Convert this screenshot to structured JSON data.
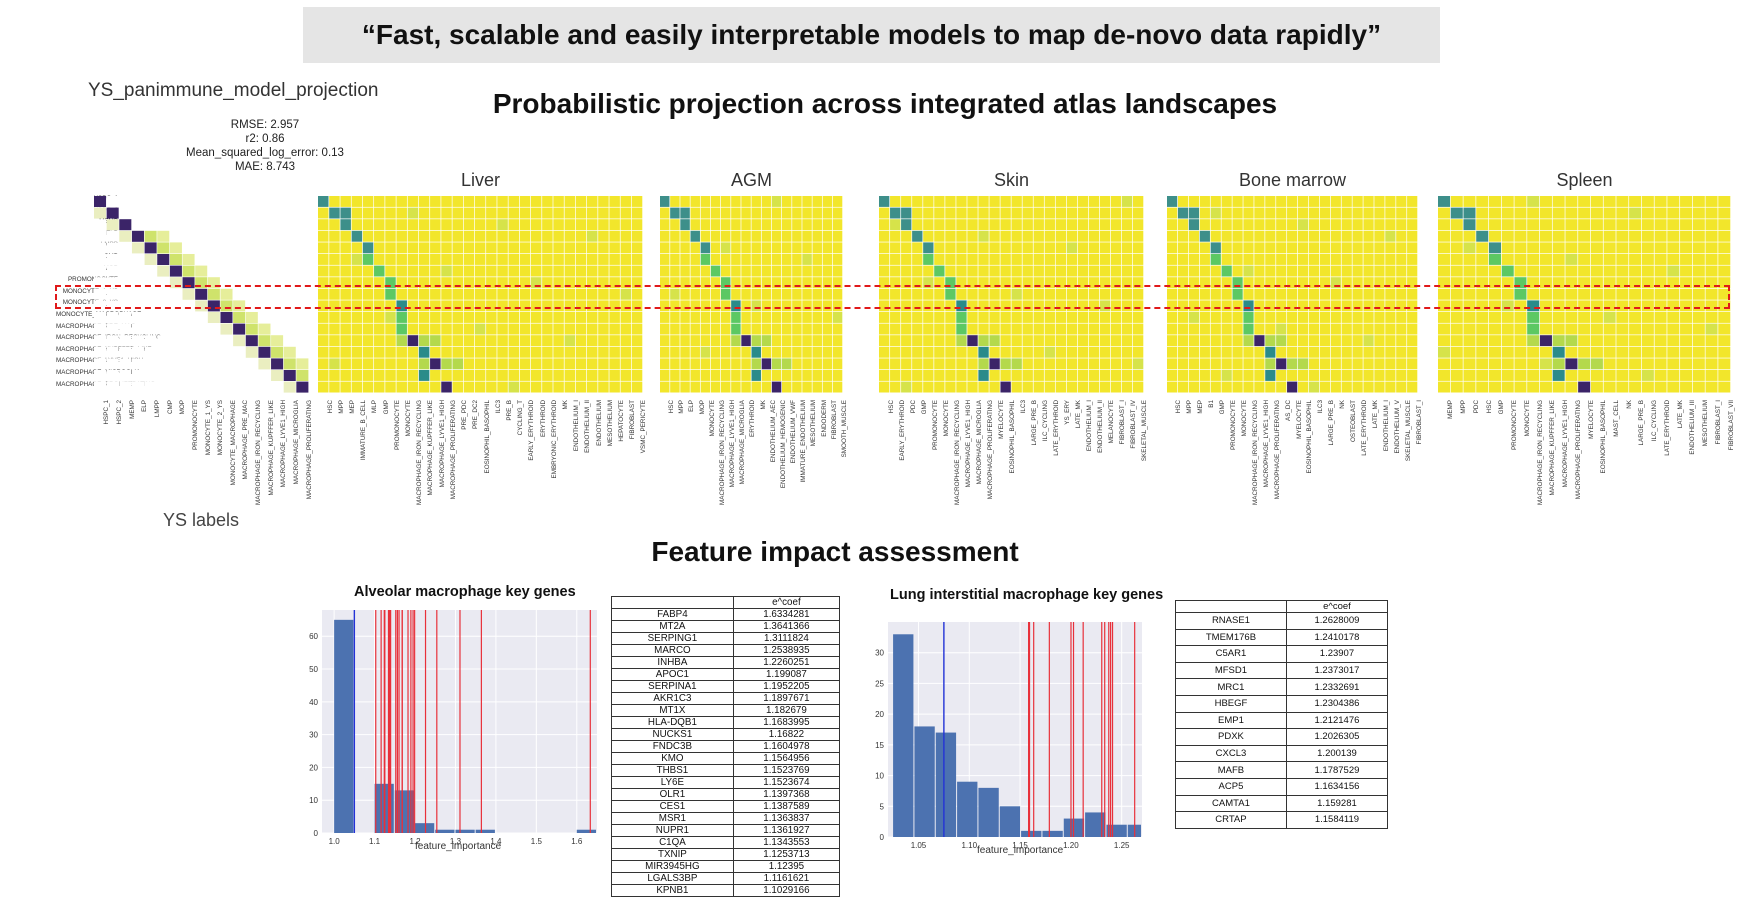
{
  "banner": "“Fast, scalable and easily interpretable models to map de-novo data rapidly”",
  "projection_title": "Probabilistic projection across integrated atlas landscapes",
  "model": {
    "name": "YS_panimmune_model_projection",
    "metrics": [
      "RMSE: 2.957",
      "r2: 0.86",
      "Mean_squared_log_error: 0.13",
      "MAE: 8.743"
    ]
  },
  "ys_axis_label": "YS labels",
  "ys_rows": [
    "HSPC_1",
    "HSPC_2",
    "MEMP",
    "ELP",
    "LMPP",
    "CMP",
    "MOP",
    "PROMONOCYTE",
    "MONOCYTE_1_YS",
    "MONOCYTE_2_YS",
    "MONOCYTE_MACROPHAGE",
    "MACROPHAGE_PRE_MAC",
    "MACROPHAGE_IRON_RECYCLING",
    "MACROPHAGE_KUPFFER_LIKE",
    "MACROPHAGE_LYVE1_HIGH",
    "MACROPHAGE_MICROGLIA",
    "MACROPHAGE_PROLIFERATING"
  ],
  "panels": [
    {
      "name": "Liver",
      "columns": [
        "HSC",
        "MPP",
        "MEP",
        "IMMATURE_B_CELL",
        "MLP",
        "GMP",
        "PROMONOCYTE",
        "MONOCYTE",
        "MACROPHAGE_IRON_RECYCLING",
        "MACROPHAGE_KUPFFER_LIKE",
        "MACROPHAGE_LYVE1_HIGH",
        "MACROPHAGE_PROLIFERATING",
        "PRE_PDC",
        "PRE_DC2",
        "EOSINOPHIL_BASOPHIL",
        "ILC3",
        "PRE_B",
        "CYCLING_T",
        "EARLY_ERYTHROID",
        "ERYTHROID",
        "EMBRYONIC_ERYTHROID",
        "MK",
        "ENDOTHELIUM_I",
        "ENDOTHELIUM_II",
        "ENDOTHELIUM",
        "MESOTHELIUM",
        "HEPATOCYTE",
        "FIBROBLAST",
        "VSMC_PERICYTE"
      ]
    },
    {
      "name": "AGM",
      "columns": [
        "HSC",
        "MPP",
        "ELP",
        "MOP",
        "MONOCYTE",
        "MACROPHAGE_IRON_RECYCLING",
        "MACROPHAGE_LYVE1_HIGH",
        "MACROPHAGE_MICROGLIA",
        "ERYTHROID",
        "MK",
        "ENDOTHELIUM_AEC",
        "ENDOTHELIUM_HEMOGENIC",
        "ENDOTHELIUM_VWF",
        "IMMATURE_ENDOTHELIUM",
        "MESOTHELIUM",
        "ENDODERM",
        "FIBROBLAST",
        "SMOOTH_MUSCLE"
      ]
    },
    {
      "name": "Skin",
      "columns": [
        "HSC",
        "EARLY_ERYTHROID",
        "PDC",
        "GMP",
        "PROMONOCYTE",
        "MONOCYTE",
        "MACROPHAGE_IRON_RECYCLING",
        "MACROPHAGE_LYVE1_HIGH",
        "MACROPHAGE_MICROGLIA",
        "MACROPHAGE_PROLIFERATING",
        "MYELOCYTE",
        "EOSINOPHIL_BASOPHIL",
        "ILC3",
        "LARGE_PRE_B",
        "ILC_CYCLING",
        "LATE_ERYTHROID",
        "YS_ERY",
        "LATE_MK",
        "ENDOTHELIUM_I",
        "ENDOTHELIUM_II",
        "MELANOCYTE",
        "FIBROBLAST_I",
        "FIBROBLAST_IV",
        "SKELETAL_MUSCLE"
      ]
    },
    {
      "name": "Bone marrow",
      "columns": [
        "HSC",
        "MPP",
        "MEP",
        "B1",
        "GMP",
        "PROMONOCYTE",
        "MONOCYTE",
        "MACROPHAGE_IRON_RECYCLING",
        "MACROPHAGE_LYVE1_HIGH",
        "MACROPHAGE_PROLIFERATING",
        "AS_DC",
        "MYELOCYTE",
        "EOSINOPHIL_BASOPHIL",
        "ILC3",
        "LARGE_PRE_B",
        "NK",
        "OSTEOBLAST",
        "LATE_ERYTHROID",
        "LATE_MK",
        "ENDOTHELIUM_I",
        "ENDOTHELIUM_V",
        "SKELETAL_MUSCLE",
        "FIBROBLAST_I"
      ]
    },
    {
      "name": "Spleen",
      "columns": [
        "MEMP",
        "MPP",
        "PDC",
        "HSC",
        "GMP",
        "PROMONOCYTE",
        "MONOCYTE",
        "MACROPHAGE_IRON_RECYCLING",
        "MACROPHAGE_KUPFFER_LIKE",
        "MACROPHAGE_LYVE1_HIGH",
        "MACROPHAGE_PROLIFERATING",
        "MYELOCYTE",
        "EOSINOPHIL_BASOPHIL",
        "MAST_CELL",
        "NK",
        "LARGE_PRE_B",
        "ILC_CYCLING",
        "LATE_ERYTHROID",
        "LATE_MK",
        "ENDOTHELIUM_III",
        "MESOTHELIUM",
        "FIBROBLAST_I",
        "FIBROBLAST_VII"
      ]
    }
  ],
  "feature_title": "Feature impact assessment",
  "alveolar": {
    "title": "Alveolar macrophage key genes",
    "xlabel": "feature_importance",
    "coef_header": "e^coef",
    "genes": [
      [
        "FABP4",
        "1.6334281"
      ],
      [
        "MT2A",
        "1.3641366"
      ],
      [
        "SERPING1",
        "1.3111824"
      ],
      [
        "MARCO",
        "1.2538935"
      ],
      [
        "INHBA",
        "1.2260251"
      ],
      [
        "APOC1",
        "1.199087"
      ],
      [
        "SERPINA1",
        "1.1952205"
      ],
      [
        "AKR1C3",
        "1.1897671"
      ],
      [
        "MT1X",
        "1.182679"
      ],
      [
        "HLA-DQB1",
        "1.1683995"
      ],
      [
        "NUCKS1",
        "1.16822"
      ],
      [
        "FNDC3B",
        "1.1604978"
      ],
      [
        "KMO",
        "1.1564956"
      ],
      [
        "THBS1",
        "1.1523769"
      ],
      [
        "LY6E",
        "1.1523674"
      ],
      [
        "OLR1",
        "1.1397368"
      ],
      [
        "CES1",
        "1.1387589"
      ],
      [
        "MSR1",
        "1.1363837"
      ],
      [
        "NUPR1",
        "1.1361927"
      ],
      [
        "C1QA",
        "1.1343553"
      ],
      [
        "TXNIP",
        "1.1253713"
      ],
      [
        "MIR3945HG",
        "1.12395"
      ],
      [
        "LGALS3BP",
        "1.1161621"
      ],
      [
        "KPNB1",
        "1.1029166"
      ]
    ]
  },
  "interstitial": {
    "title": "Lung interstitial macrophage key genes",
    "xlabel": "feature_importance",
    "coef_header": "e^coef",
    "genes": [
      [
        "RNASE1",
        "1.2628009"
      ],
      [
        "TMEM176B",
        "1.2410178"
      ],
      [
        "C5AR1",
        "1.23907"
      ],
      [
        "MFSD1",
        "1.2373017"
      ],
      [
        "MRC1",
        "1.2332691"
      ],
      [
        "HBEGF",
        "1.2304386"
      ],
      [
        "EMP1",
        "1.2121476"
      ],
      [
        "PDXK",
        "1.2026305"
      ],
      [
        "CXCL3",
        "1.200139"
      ],
      [
        "MAFB",
        "1.1787529"
      ],
      [
        "ACP5",
        "1.1634156"
      ],
      [
        "CAMTA1",
        "1.159281"
      ],
      [
        "CRTAP",
        "1.1584119"
      ]
    ]
  },
  "chart_data": [
    {
      "type": "bar",
      "title": "Alveolar macrophage key genes",
      "xlabel": "feature_importance",
      "ylabel": "",
      "xlim": [
        0.97,
        1.65
      ],
      "ylim": [
        0,
        68
      ],
      "x_ticks": [
        "1.0",
        "1.1",
        "1.2",
        "1.3",
        "1.4",
        "1.5",
        "1.6"
      ],
      "y_ticks": [
        "0",
        "10",
        "20",
        "30",
        "40",
        "50",
        "60"
      ],
      "bins": [
        [
          1.0,
          1.05,
          65
        ],
        [
          1.05,
          1.1,
          0
        ],
        [
          1.1,
          1.15,
          15
        ],
        [
          1.15,
          1.2,
          13
        ],
        [
          1.2,
          1.25,
          3
        ],
        [
          1.25,
          1.3,
          1
        ],
        [
          1.3,
          1.35,
          1
        ],
        [
          1.35,
          1.4,
          1
        ],
        [
          1.4,
          1.45,
          0
        ],
        [
          1.45,
          1.5,
          0
        ],
        [
          1.5,
          1.55,
          0
        ],
        [
          1.55,
          1.6,
          0
        ],
        [
          1.6,
          1.65,
          1
        ]
      ],
      "mean_line": 1.05,
      "gene_lines": [
        1.1029,
        1.1162,
        1.124,
        1.1254,
        1.1344,
        1.1362,
        1.1364,
        1.1388,
        1.1397,
        1.1524,
        1.1565,
        1.1605,
        1.1682,
        1.1684,
        1.1827,
        1.1898,
        1.1952,
        1.1991,
        1.226,
        1.2539,
        1.3112,
        1.3641,
        1.6334
      ]
    },
    {
      "type": "bar",
      "title": "Lung interstitial macrophage key genes",
      "xlabel": "feature_importance",
      "ylabel": "",
      "xlim": [
        1.02,
        1.27
      ],
      "ylim": [
        0,
        35
      ],
      "x_ticks": [
        "1.05",
        "1.10",
        "1.15",
        "1.20",
        "1.25"
      ],
      "y_ticks": [
        "0",
        "5",
        "10",
        "15",
        "20",
        "25",
        "30"
      ],
      "bins": [
        [
          1.025,
          1.046,
          33
        ],
        [
          1.046,
          1.067,
          18
        ],
        [
          1.067,
          1.088,
          17
        ],
        [
          1.088,
          1.109,
          9
        ],
        [
          1.109,
          1.13,
          8
        ],
        [
          1.13,
          1.151,
          5
        ],
        [
          1.151,
          1.172,
          1
        ],
        [
          1.172,
          1.193,
          1
        ],
        [
          1.193,
          1.214,
          3
        ],
        [
          1.214,
          1.235,
          4
        ],
        [
          1.235,
          1.256,
          2
        ],
        [
          1.256,
          1.27,
          2
        ]
      ],
      "mean_line": 1.075,
      "gene_lines": [
        1.1584,
        1.1593,
        1.1634,
        1.1788,
        1.2001,
        1.2026,
        1.2121,
        1.2304,
        1.2333,
        1.2373,
        1.2391,
        1.241,
        1.2628
      ]
    }
  ],
  "colors": {
    "heat_bg": "#f2e62b",
    "heat_dark": "#3b2468",
    "heat_teal": "#2a8b8a",
    "heat_green": "#5cc863",
    "bar": "#4c72b0",
    "gene_line": "#e8303a",
    "mean_line": "#2332d6",
    "highlight": "#e0191a"
  }
}
